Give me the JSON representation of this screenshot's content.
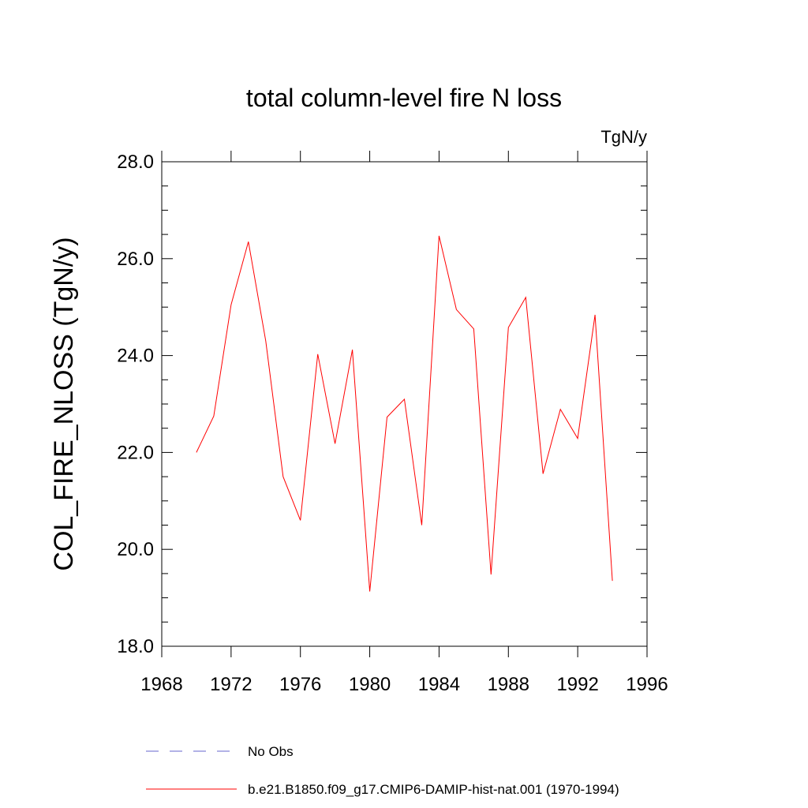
{
  "chart_data": {
    "type": "line",
    "title": "total column-level fire N loss",
    "units_label": "TgN/y",
    "ylabel": "COL_FIRE_NLOSS  (TgN/y)",
    "xlabel": "",
    "xlim": [
      1968,
      1996
    ],
    "ylim": [
      18.0,
      28.0
    ],
    "x_major_ticks": [
      1968,
      1972,
      1976,
      1980,
      1984,
      1988,
      1992,
      1996
    ],
    "x_tick_labels": [
      "1968",
      "1972",
      "1976",
      "1980",
      "1984",
      "1988",
      "1992",
      "1996"
    ],
    "y_major_ticks": [
      18,
      20,
      22,
      24,
      26,
      28
    ],
    "y_tick_labels": [
      "18.0",
      "20.0",
      "22.0",
      "24.0",
      "26.0",
      "28.0"
    ],
    "grid": false,
    "legend_position": "bottom",
    "series": [
      {
        "name": "b.e21.B1850.f09_g17.CMIP6-DAMIP-hist-nat.001 (1970-1994)",
        "color": "#ff0000",
        "dash": "solid",
        "x": [
          1970,
          1971,
          1972,
          1973,
          1974,
          1975,
          1976,
          1977,
          1978,
          1979,
          1980,
          1981,
          1982,
          1983,
          1984,
          1985,
          1986,
          1987,
          1988,
          1989,
          1990,
          1991,
          1992,
          1993,
          1994
        ],
        "y": [
          22.0,
          22.75,
          25.05,
          26.35,
          24.3,
          21.5,
          20.6,
          24.03,
          22.18,
          24.12,
          19.13,
          22.73,
          23.1,
          20.5,
          26.47,
          24.95,
          24.55,
          19.48,
          24.58,
          25.2,
          21.56,
          22.89,
          22.29,
          24.84,
          19.35
        ]
      }
    ],
    "legend": [
      {
        "label": "No Obs",
        "color": "#6666cc",
        "dash": "dashed"
      },
      {
        "label": "b.e21.B1850.f09_g17.CMIP6-DAMIP-hist-nat.001 (1970-1994)",
        "color": "#ff0000",
        "dash": "solid"
      }
    ]
  }
}
